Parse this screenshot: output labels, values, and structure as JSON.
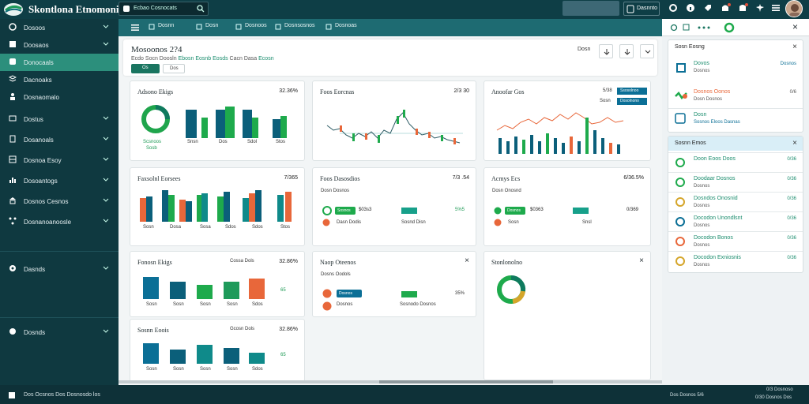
{
  "app": {
    "title": "Skontlona Etnomonia |",
    "search_placeholder": "Ecbao Cosnocats",
    "top_button": "Dasnnto"
  },
  "sidebar": {
    "items": [
      {
        "label": "Dosoos",
        "icon": "dashboard-icon",
        "chevron": true
      },
      {
        "label": "Doosaos",
        "icon": "grid-icon",
        "chevron": true
      },
      {
        "label": "Donocaals",
        "icon": "finance-icon",
        "chevron": false,
        "active": true
      },
      {
        "label": "Dacnoaks",
        "icon": "layers-icon",
        "chevron": false
      },
      {
        "label": "Dosnaomalo",
        "icon": "people-icon",
        "chevron": false
      },
      {
        "label": "Dostus",
        "icon": "card-icon",
        "chevron": true
      },
      {
        "label": "Dosanoals",
        "icon": "document-icon",
        "chevron": true
      },
      {
        "label": "Dosnoa Esoy",
        "icon": "table-icon",
        "chevron": true
      },
      {
        "label": "Dosoantogs",
        "icon": "chart-icon",
        "chevron": true
      },
      {
        "label": "Dosnos Cesnos",
        "icon": "bank-icon",
        "chevron": true
      },
      {
        "label": "Dosnanoanoosle",
        "icon": "network-icon",
        "chevron": true
      }
    ],
    "lower_items": [
      {
        "label": "Dasnds",
        "icon": "settings-icon",
        "chevron": true
      },
      {
        "label": "Dosnds",
        "icon": "help-icon",
        "chevron": true
      }
    ]
  },
  "subnav": {
    "tabs": [
      "Dosnn",
      "Dosn",
      "Dosnoos",
      "Dosnsosnos",
      "Dosnoas"
    ]
  },
  "header": {
    "title": "Mosoonos 2?4",
    "subtitle_parts": [
      "Ecdo Socn Doosln",
      "Ebosn Eosnb Eosds",
      "Cacn Dasa",
      "Ecosn"
    ],
    "btn_primary": "Os",
    "btn_secondary": "Dos",
    "right_label": "Dosn"
  },
  "cards": {
    "c1": {
      "title": "Adsono Ekigs",
      "value": "32.36%",
      "label1": "Scsnoos",
      "label2": "Sosb",
      "bar_labels": [
        "Snsn",
        "Dos",
        "Sdol",
        "Stos"
      ]
    },
    "c2": {
      "title": "Foos Eorcnas",
      "value": "2/3 30"
    },
    "c3": {
      "title": "Anoofar Gos",
      "legend": [
        "Ssosolnoo",
        "Dosolnono"
      ],
      "legend_value": "5/38",
      "legend_value2": "Sosn"
    },
    "c4": {
      "title": "Faxsolnl Eorsees",
      "value": "7/365",
      "bar_labels": [
        "Sosn",
        "Dosa",
        "Sosa",
        "Sdos",
        "Sdos",
        "Stos"
      ]
    },
    "c5": {
      "title": "Foos Dasosdios",
      "value": "7/3 .54",
      "sub": "Dosn Dosnos",
      "row1_badge": "Sosnos",
      "row1_val": "$03s3",
      "row1_right": "5%5",
      "row2_label": "Dasn Dodis",
      "row2_mid": "Sosnd Disn"
    },
    "c6": {
      "title": "Acmys Ecs",
      "value": "6/36.5%",
      "sub": "Dosn Onosnd",
      "row1_badge": "Dosnos",
      "row1_val": "$0363",
      "row1_right": "0/369",
      "row2_label": "Sosn",
      "row2_mid": "Snsl"
    },
    "c7": {
      "title": "Fonosn Ekigs",
      "value": "32.86%",
      "value_label": "Cossa Dols",
      "value2": "65",
      "bar_labels": [
        "Sosn",
        "Sosn",
        "Sosn",
        "Sosn",
        "Sdos"
      ]
    },
    "c8": {
      "title": "Naop Oteenos",
      "sub": "Dosns Oodols",
      "row1_badge": "Dosnos",
      "row1_label": "Sosnodo Dosnos",
      "row1_right": "35%",
      "row2_label": "Dosnos"
    },
    "c9": {
      "title": "Stonlonolno"
    },
    "c10": {
      "title": "Sosnn Eoois",
      "value": "32.86%",
      "value_label": "Gcosn Dols",
      "value2": "65",
      "bar_labels": [
        "Sosn",
        "Sosn",
        "Sosn",
        "Sosn",
        "Sdos"
      ]
    }
  },
  "right_panel": {
    "card1_title": "Sosn Eosng",
    "card1_items": [
      {
        "t1": "Dovos",
        "t2": "Dosnos",
        "v": "Dosnos"
      },
      {
        "t1": "Dosnos Oonos",
        "t2": "Dosn Dosnos",
        "v": "0/6"
      },
      {
        "t1": "Dosn",
        "t2": "Sosnos Eloos Dasnas",
        "v": ""
      }
    ],
    "card2_title": "Sosnn Emos",
    "card2_items": [
      {
        "t1": "Doon Eoos Doos",
        "t2": "",
        "v": "0/36"
      },
      {
        "t1": "Doodaar Dosnos",
        "t2": "Dosnos",
        "v": "0/36"
      },
      {
        "t1": "Dosndos Onosnid",
        "t2": "Dosnos",
        "v": "0/36"
      },
      {
        "t1": "Docodon Unondlsnt",
        "t2": "Dosnos",
        "v": "0/36"
      },
      {
        "t1": "Docodon Bonos",
        "t2": "Dosnos",
        "v": "0/36"
      },
      {
        "t1": "Docodon Exniosnis",
        "t2": "Dosnos",
        "v": "0/36"
      }
    ]
  },
  "footer": {
    "left": "Dos Ocsnos Dos Dosnosdo los",
    "right1": "Dos Dosnos 5/6",
    "right2": "0/3 Dosnoso",
    "right3": "0/30 Dosnos Dos"
  },
  "colors": {
    "teal": "#0f8a8a",
    "navy": "#0b5f7a",
    "green": "#1eaa4c",
    "orange": "#e8673a",
    "sidebar": "#0f3940"
  }
}
